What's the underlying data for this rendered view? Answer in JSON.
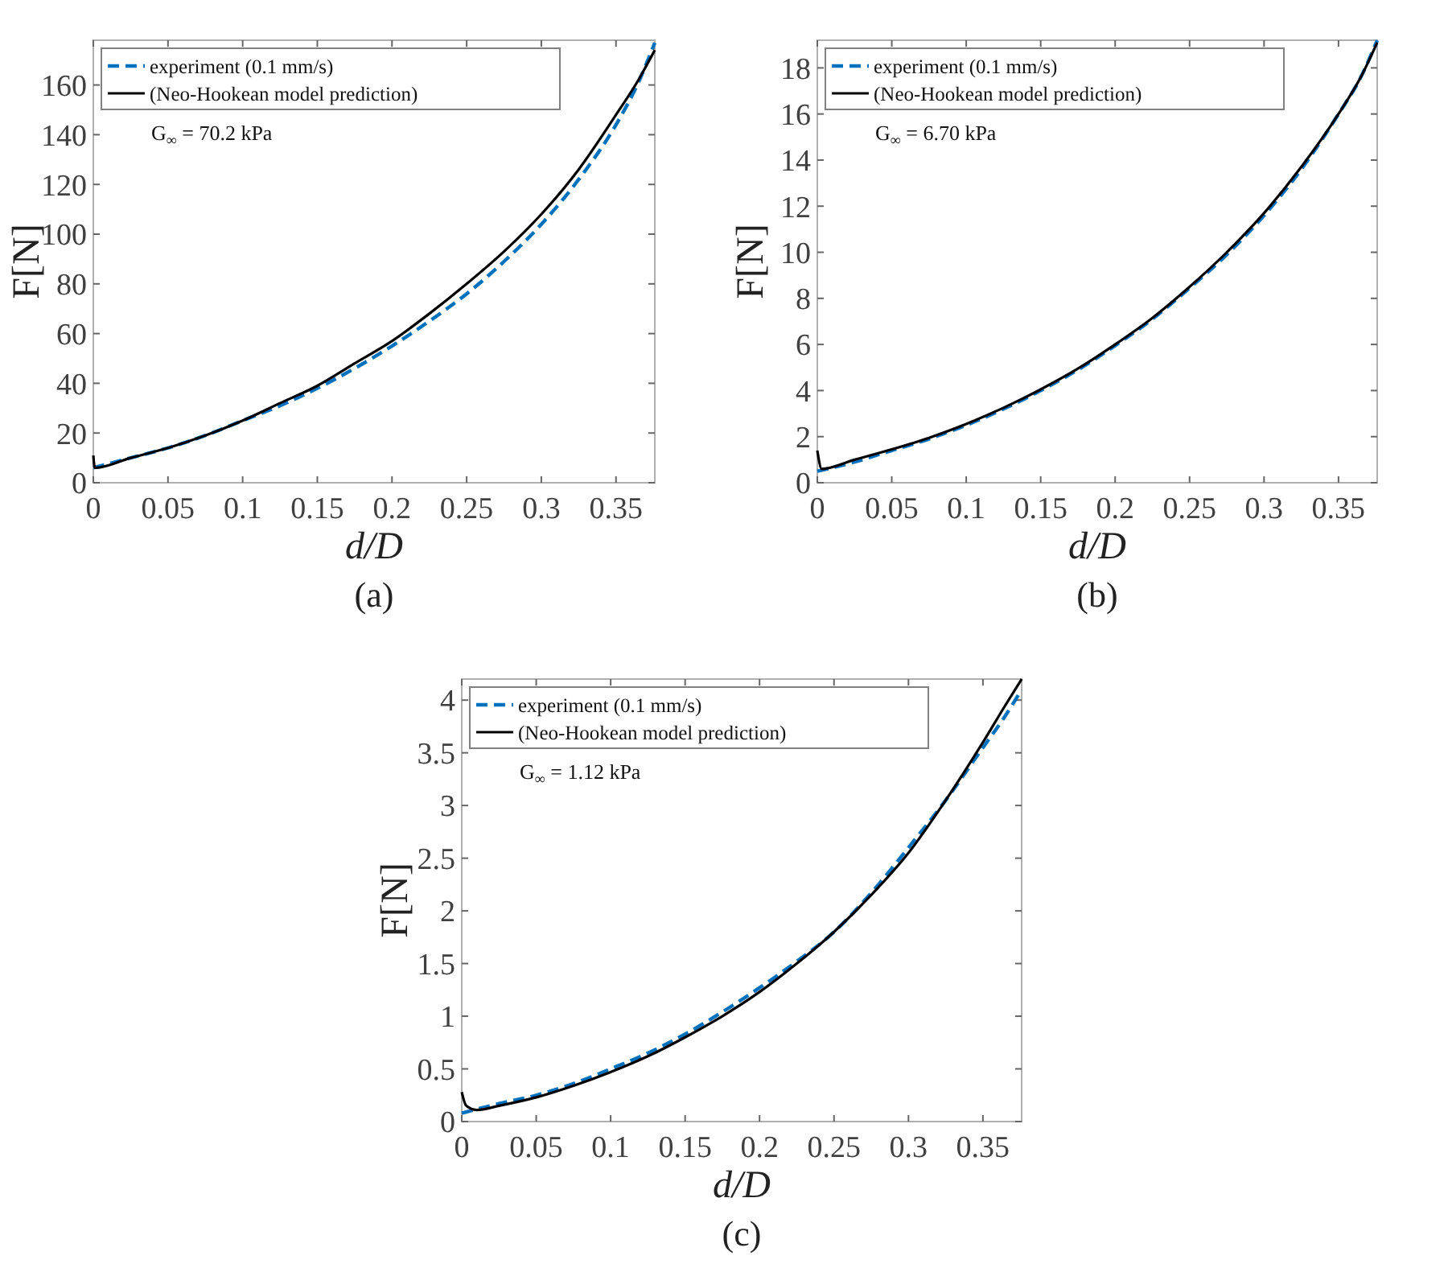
{
  "chart_data": [
    {
      "type": "line",
      "title": "(a)",
      "xlabel": "d/D",
      "ylabel": "F[N]",
      "xlim": [
        0,
        0.376
      ],
      "ylim": [
        0,
        178
      ],
      "xticks": [
        0,
        0.05,
        0.1,
        0.15,
        0.2,
        0.25,
        0.3,
        0.35
      ],
      "yticks": [
        0,
        20,
        40,
        60,
        80,
        100,
        120,
        140,
        160
      ],
      "legend": "top left",
      "grid": false,
      "annotations": [
        "G$_{∞}$ = 70.2 kPa"
      ],
      "series": [
        {
          "name": "experiment (0.1 mm/s)",
          "color": "#0072bd",
          "line_style": "dashed",
          "x": [
            0,
            0.025,
            0.05,
            0.075,
            0.1,
            0.125,
            0.15,
            0.175,
            0.2,
            0.225,
            0.25,
            0.275,
            0.3,
            0.325,
            0.35,
            0.365,
            0.376
          ],
          "values": [
            6,
            10,
            14,
            19,
            25,
            31,
            38,
            46,
            55,
            65,
            76,
            89,
            104,
            122,
            144,
            161,
            177
          ]
        },
        {
          "name": "(Neo-Hookean model prediction)",
          "color": "#000000",
          "line_style": "solid",
          "x": [
            0,
            0.001,
            0.025,
            0.05,
            0.075,
            0.1,
            0.125,
            0.15,
            0.175,
            0.2,
            0.225,
            0.25,
            0.275,
            0.3,
            0.325,
            0.35,
            0.365,
            0.376
          ],
          "values": [
            11,
            6,
            10,
            14,
            19,
            25,
            32,
            39,
            48,
            57,
            68,
            80,
            93,
            108,
            126,
            148,
            162,
            174
          ]
        }
      ]
    },
    {
      "type": "line",
      "title": "(b)",
      "xlabel": "d/D",
      "ylabel": "F[N]",
      "xlim": [
        0,
        0.376
      ],
      "ylim": [
        0,
        19.2
      ],
      "xticks": [
        0,
        0.05,
        0.1,
        0.15,
        0.2,
        0.25,
        0.3,
        0.35
      ],
      "yticks": [
        0,
        2,
        4,
        6,
        8,
        10,
        12,
        14,
        16,
        18
      ],
      "legend": "top left",
      "grid": false,
      "annotations": [
        "G$_{∞}$ = 6.70 kPa"
      ],
      "series": [
        {
          "name": "experiment (0.1 mm/s)",
          "color": "#0072bd",
          "line_style": "dashed",
          "x": [
            0,
            0.025,
            0.05,
            0.075,
            0.1,
            0.125,
            0.15,
            0.175,
            0.2,
            0.225,
            0.25,
            0.275,
            0.3,
            0.325,
            0.35,
            0.365,
            0.376
          ],
          "values": [
            0.5,
            0.9,
            1.4,
            1.9,
            2.5,
            3.2,
            4.0,
            4.9,
            5.95,
            7.1,
            8.45,
            9.9,
            11.6,
            13.6,
            16.0,
            17.6,
            19.2
          ]
        },
        {
          "name": "(Neo-Hookean model prediction)",
          "color": "#000000",
          "line_style": "solid",
          "x": [
            0,
            0.003,
            0.025,
            0.05,
            0.075,
            0.1,
            0.125,
            0.15,
            0.175,
            0.2,
            0.225,
            0.25,
            0.275,
            0.3,
            0.325,
            0.35,
            0.365,
            0.376
          ],
          "values": [
            1.4,
            0.6,
            1.0,
            1.45,
            1.95,
            2.55,
            3.25,
            4.05,
            4.95,
            6.0,
            7.15,
            8.5,
            10.0,
            11.7,
            13.7,
            16.0,
            17.6,
            19.1
          ]
        }
      ]
    },
    {
      "type": "line",
      "title": "(c)",
      "xlabel": "d/D",
      "ylabel": "F[N]",
      "xlim": [
        0,
        0.376
      ],
      "ylim": [
        0,
        4.2
      ],
      "xticks": [
        0,
        0.05,
        0.1,
        0.15,
        0.2,
        0.25,
        0.3,
        0.35
      ],
      "yticks": [
        0,
        0.5,
        1,
        1.5,
        2,
        2.5,
        3,
        3.5,
        4
      ],
      "legend": "top left",
      "grid": false,
      "annotations": [
        "G$_{∞}$ = 1.12 kPa"
      ],
      "series": [
        {
          "name": "experiment (0.1 mm/s)",
          "color": "#0072bd",
          "line_style": "dashed",
          "x": [
            0,
            0.025,
            0.05,
            0.075,
            0.1,
            0.125,
            0.15,
            0.175,
            0.2,
            0.225,
            0.25,
            0.275,
            0.3,
            0.325,
            0.35,
            0.365,
            0.376
          ],
          "values": [
            0.08,
            0.17,
            0.25,
            0.36,
            0.5,
            0.65,
            0.83,
            1.04,
            1.27,
            1.52,
            1.8,
            2.17,
            2.6,
            3.05,
            3.55,
            3.85,
            4.1
          ]
        },
        {
          "name": "(Neo-Hookean model prediction)",
          "color": "#000000",
          "line_style": "solid",
          "x": [
            0,
            0.003,
            0.01,
            0.025,
            0.05,
            0.075,
            0.1,
            0.125,
            0.15,
            0.175,
            0.2,
            0.225,
            0.25,
            0.275,
            0.3,
            0.325,
            0.35,
            0.365,
            0.376
          ],
          "values": [
            0.28,
            0.15,
            0.11,
            0.15,
            0.23,
            0.34,
            0.47,
            0.62,
            0.8,
            1.0,
            1.23,
            1.5,
            1.8,
            2.15,
            2.55,
            3.05,
            3.6,
            3.95,
            4.2
          ]
        }
      ]
    }
  ]
}
